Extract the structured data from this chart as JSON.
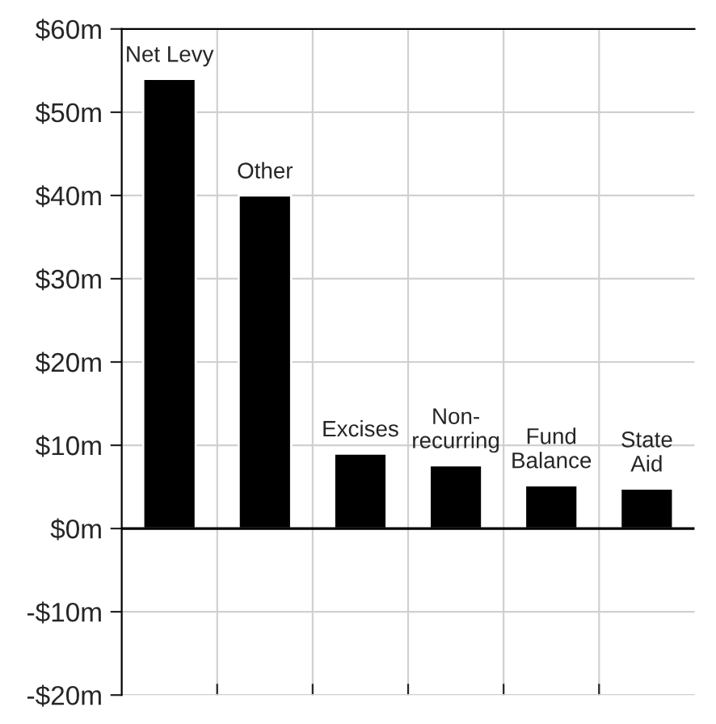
{
  "chart_data": {
    "type": "bar",
    "categories": [
      "Net Levy",
      "Other",
      "Excises",
      "Non-\nrecurring",
      "Fund\nBalance",
      "State\nAid"
    ],
    "values": [
      54,
      40,
      9,
      7.6,
      5.2,
      4.8
    ],
    "color": "#000000",
    "ylim": [
      -20,
      60
    ],
    "yticks": [
      {
        "value": -20,
        "label": "-$20m"
      },
      {
        "value": -10,
        "label": "-$10m"
      },
      {
        "value": 0,
        "label": "$0m"
      },
      {
        "value": 10,
        "label": "$10m"
      },
      {
        "value": 20,
        "label": "$20m"
      },
      {
        "value": 30,
        "label": "$30m"
      },
      {
        "value": 40,
        "label": "$40m"
      },
      {
        "value": 50,
        "label": "$50m"
      },
      {
        "value": 60,
        "label": "$60m"
      }
    ],
    "tick_labels": "y",
    "grid": true
  }
}
